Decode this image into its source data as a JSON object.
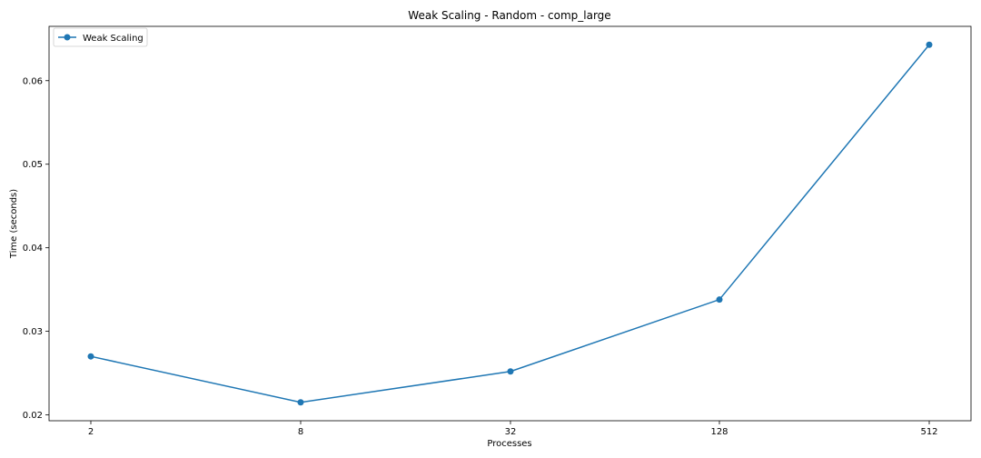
{
  "chart_data": {
    "type": "line",
    "title": "Weak Scaling - Random - comp_large",
    "xlabel": "Processes",
    "ylabel": "Time (seconds)",
    "x_scale": "log2",
    "x": [
      2,
      8,
      32,
      128,
      512
    ],
    "x_tick_labels": [
      "2",
      "8",
      "32",
      "128",
      "512"
    ],
    "y_ticks": [
      0.02,
      0.03,
      0.04,
      0.05,
      0.06
    ],
    "y_tick_labels": [
      "0.02",
      "0.03",
      "0.04",
      "0.05",
      "0.06"
    ],
    "ylim": [
      0.0193,
      0.0665
    ],
    "grid": false,
    "legend_position": "top-left",
    "series": [
      {
        "name": "Weak Scaling",
        "color": "#1f77b4",
        "marker": "circle",
        "values": [
          0.027,
          0.0215,
          0.0252,
          0.0338,
          0.0643
        ]
      }
    ]
  }
}
